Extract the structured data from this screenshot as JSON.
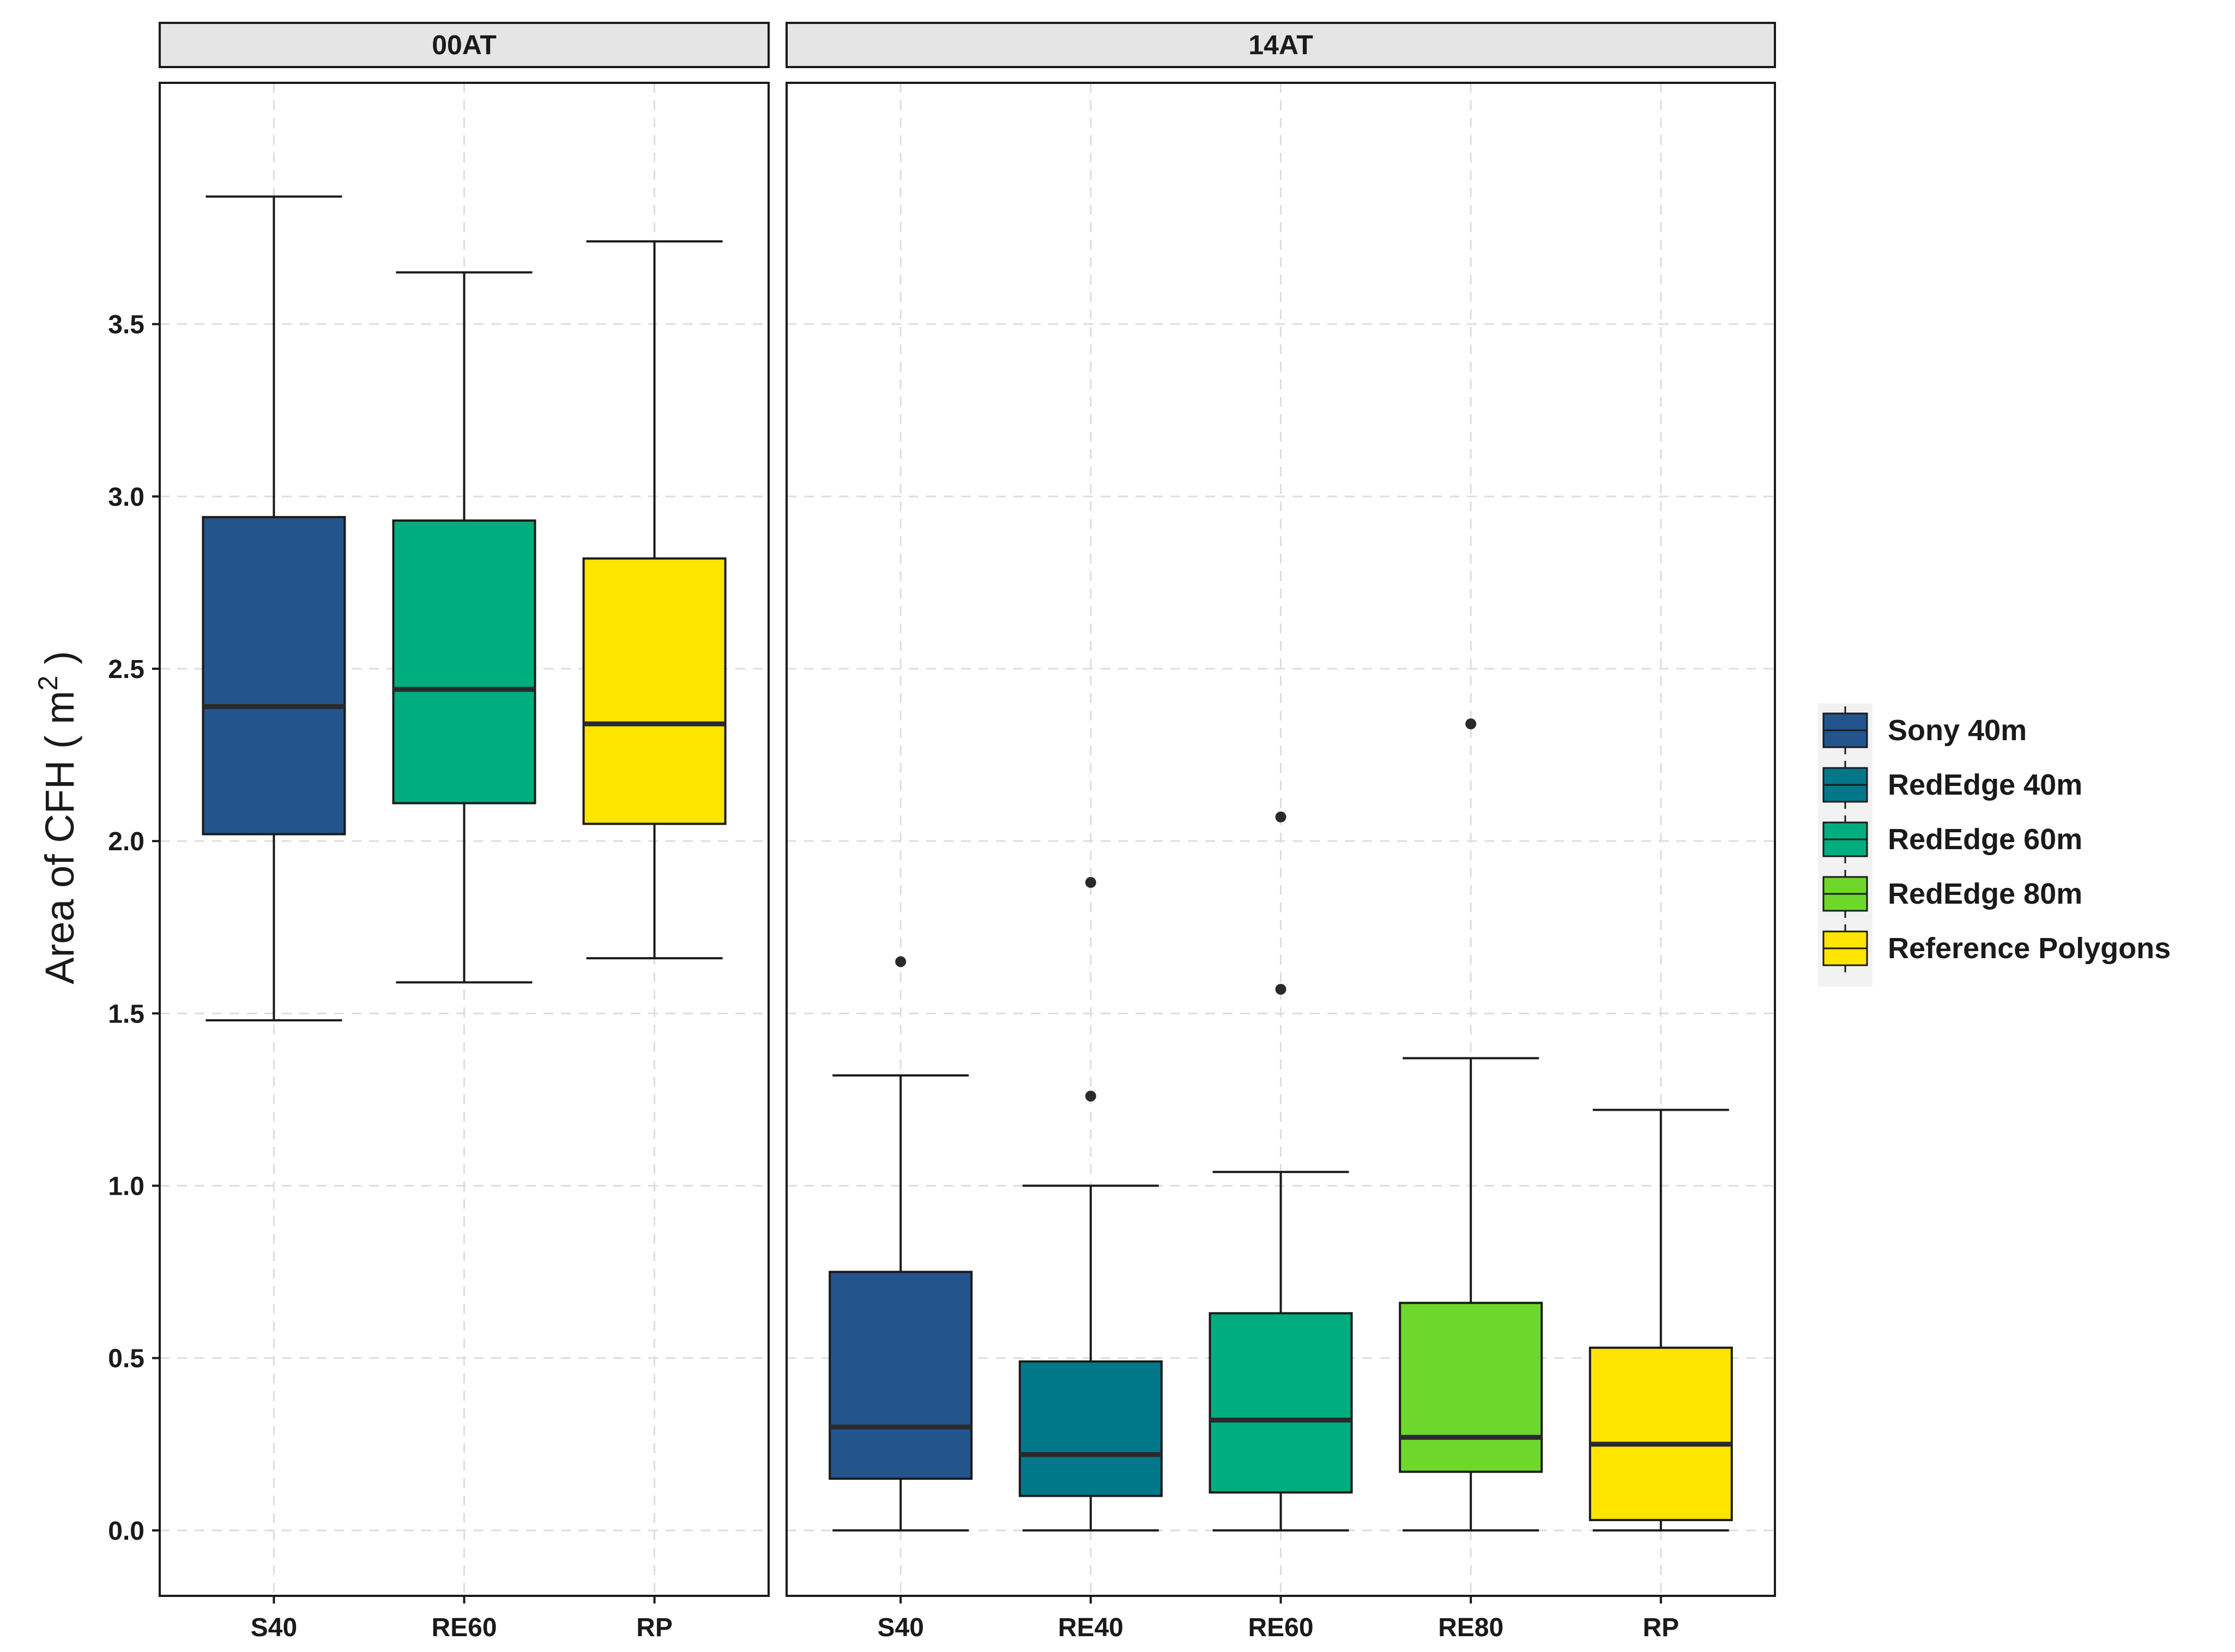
{
  "chart_data": {
    "type": "boxplot",
    "ylabel": "Area of CFH",
    "ylabel_unit_open": "( m",
    "ylabel_unit_exp": "2",
    "ylabel_unit_close": " )",
    "ylim": [
      -0.19,
      4.2
    ],
    "yticks": [
      "0.0",
      "0.5",
      "1.0",
      "1.5",
      "2.0",
      "2.5",
      "3.0",
      "3.5"
    ],
    "ytick_values": [
      0.0,
      0.5,
      1.0,
      1.5,
      2.0,
      2.5,
      3.0,
      3.5
    ],
    "grid": true,
    "legend": {
      "position": "right",
      "entries": [
        {
          "name": "Sony 40m",
          "color": "#23548c"
        },
        {
          "name": "RedEdge 40m",
          "color": "#00788a"
        },
        {
          "name": "RedEdge 60m",
          "color": "#00ad7f"
        },
        {
          "name": "RedEdge 80m",
          "color": "#6dd82b"
        },
        {
          "name": "Reference Polygons",
          "color": "#fde500"
        }
      ]
    },
    "panels": [
      {
        "title": "00AT",
        "categories": [
          "S40",
          "RE60",
          "RP"
        ],
        "boxes": [
          {
            "category": "S40",
            "series": "Sony 40m",
            "color": "#23548c",
            "min": 1.48,
            "q1": 2.02,
            "median": 2.39,
            "q3": 2.94,
            "max": 3.87,
            "outliers": []
          },
          {
            "category": "RE60",
            "series": "RedEdge 60m",
            "color": "#00ad7f",
            "min": 1.59,
            "q1": 2.11,
            "median": 2.44,
            "q3": 2.93,
            "max": 3.65,
            "outliers": []
          },
          {
            "category": "RP",
            "series": "Reference Polygons",
            "color": "#fde500",
            "min": 1.66,
            "q1": 2.05,
            "median": 2.34,
            "q3": 2.82,
            "max": 3.74,
            "outliers": []
          }
        ]
      },
      {
        "title": "14AT",
        "categories": [
          "S40",
          "RE40",
          "RE60",
          "RE80",
          "RP"
        ],
        "boxes": [
          {
            "category": "S40",
            "series": "Sony 40m",
            "color": "#23548c",
            "min": 0.0,
            "q1": 0.15,
            "median": 0.3,
            "q3": 0.75,
            "max": 1.32,
            "outliers": [
              1.65
            ]
          },
          {
            "category": "RE40",
            "series": "RedEdge 40m",
            "color": "#00788a",
            "min": 0.0,
            "q1": 0.1,
            "median": 0.22,
            "q3": 0.49,
            "max": 1.0,
            "outliers": [
              1.26,
              1.88
            ]
          },
          {
            "category": "RE60",
            "series": "RedEdge 60m",
            "color": "#00ad7f",
            "min": 0.0,
            "q1": 0.11,
            "median": 0.32,
            "q3": 0.63,
            "max": 1.04,
            "outliers": [
              1.57,
              2.07
            ]
          },
          {
            "category": "RE80",
            "series": "RedEdge 80m",
            "color": "#6dd82b",
            "min": 0.0,
            "q1": 0.17,
            "median": 0.27,
            "q3": 0.66,
            "max": 1.37,
            "outliers": [
              2.34
            ]
          },
          {
            "category": "RP",
            "series": "Reference Polygons",
            "color": "#fde500",
            "min": 0.0,
            "q1": 0.03,
            "median": 0.25,
            "q3": 0.53,
            "max": 1.22,
            "outliers": []
          }
        ]
      }
    ]
  }
}
